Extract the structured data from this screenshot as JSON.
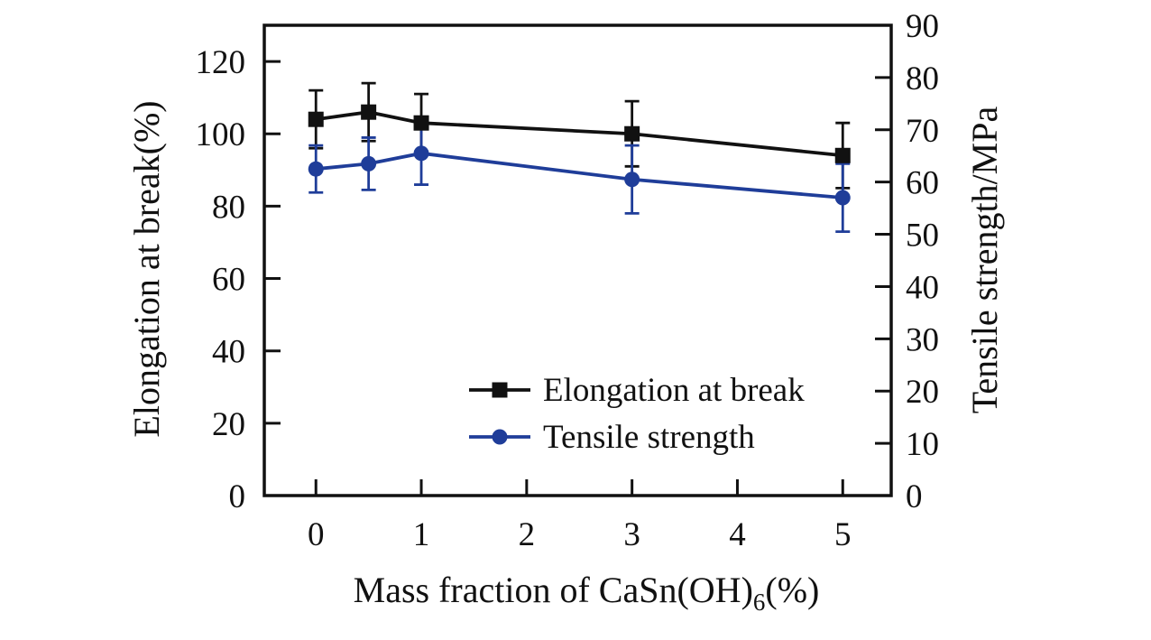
{
  "figure": {
    "background": "#ffffff",
    "frame_color": "#111111",
    "text_color": "#111111"
  },
  "chart_data": {
    "type": "line",
    "x": [
      0,
      0.5,
      1,
      3,
      5
    ],
    "x_axis": {
      "label_prefix": "Mass fraction of CaSn(OH)",
      "label_sub": "6",
      "label_suffix": "(%)",
      "ticks": [
        0,
        1,
        2,
        3,
        4,
        5
      ],
      "min": -0.49,
      "max": 5.46,
      "grid": false
    },
    "left_axis": {
      "label": "Elongation at break(%)",
      "ticks": [
        0,
        20,
        40,
        60,
        80,
        100,
        120
      ],
      "min": 0,
      "max": 130
    },
    "right_axis": {
      "label": "Tensile strength/MPa",
      "ticks": [
        0,
        10,
        20,
        30,
        40,
        50,
        60,
        70,
        80,
        90
      ],
      "min": 0,
      "max": 90
    },
    "series": [
      {
        "name": "Elongation at break",
        "axis": "left",
        "marker": "square",
        "color": "#111111",
        "values": [
          104,
          106,
          103,
          100,
          94
        ],
        "errors": [
          8,
          8,
          8,
          9,
          9
        ]
      },
      {
        "name": "Tensile strength",
        "axis": "right",
        "marker": "circle",
        "color": "#1f3d99",
        "values": [
          62.5,
          63.5,
          65.5,
          60.5,
          57
        ],
        "errors": [
          4.5,
          5,
          6,
          6.5,
          6.5
        ]
      }
    ],
    "legend": {
      "position": "lower-right-inside"
    }
  }
}
